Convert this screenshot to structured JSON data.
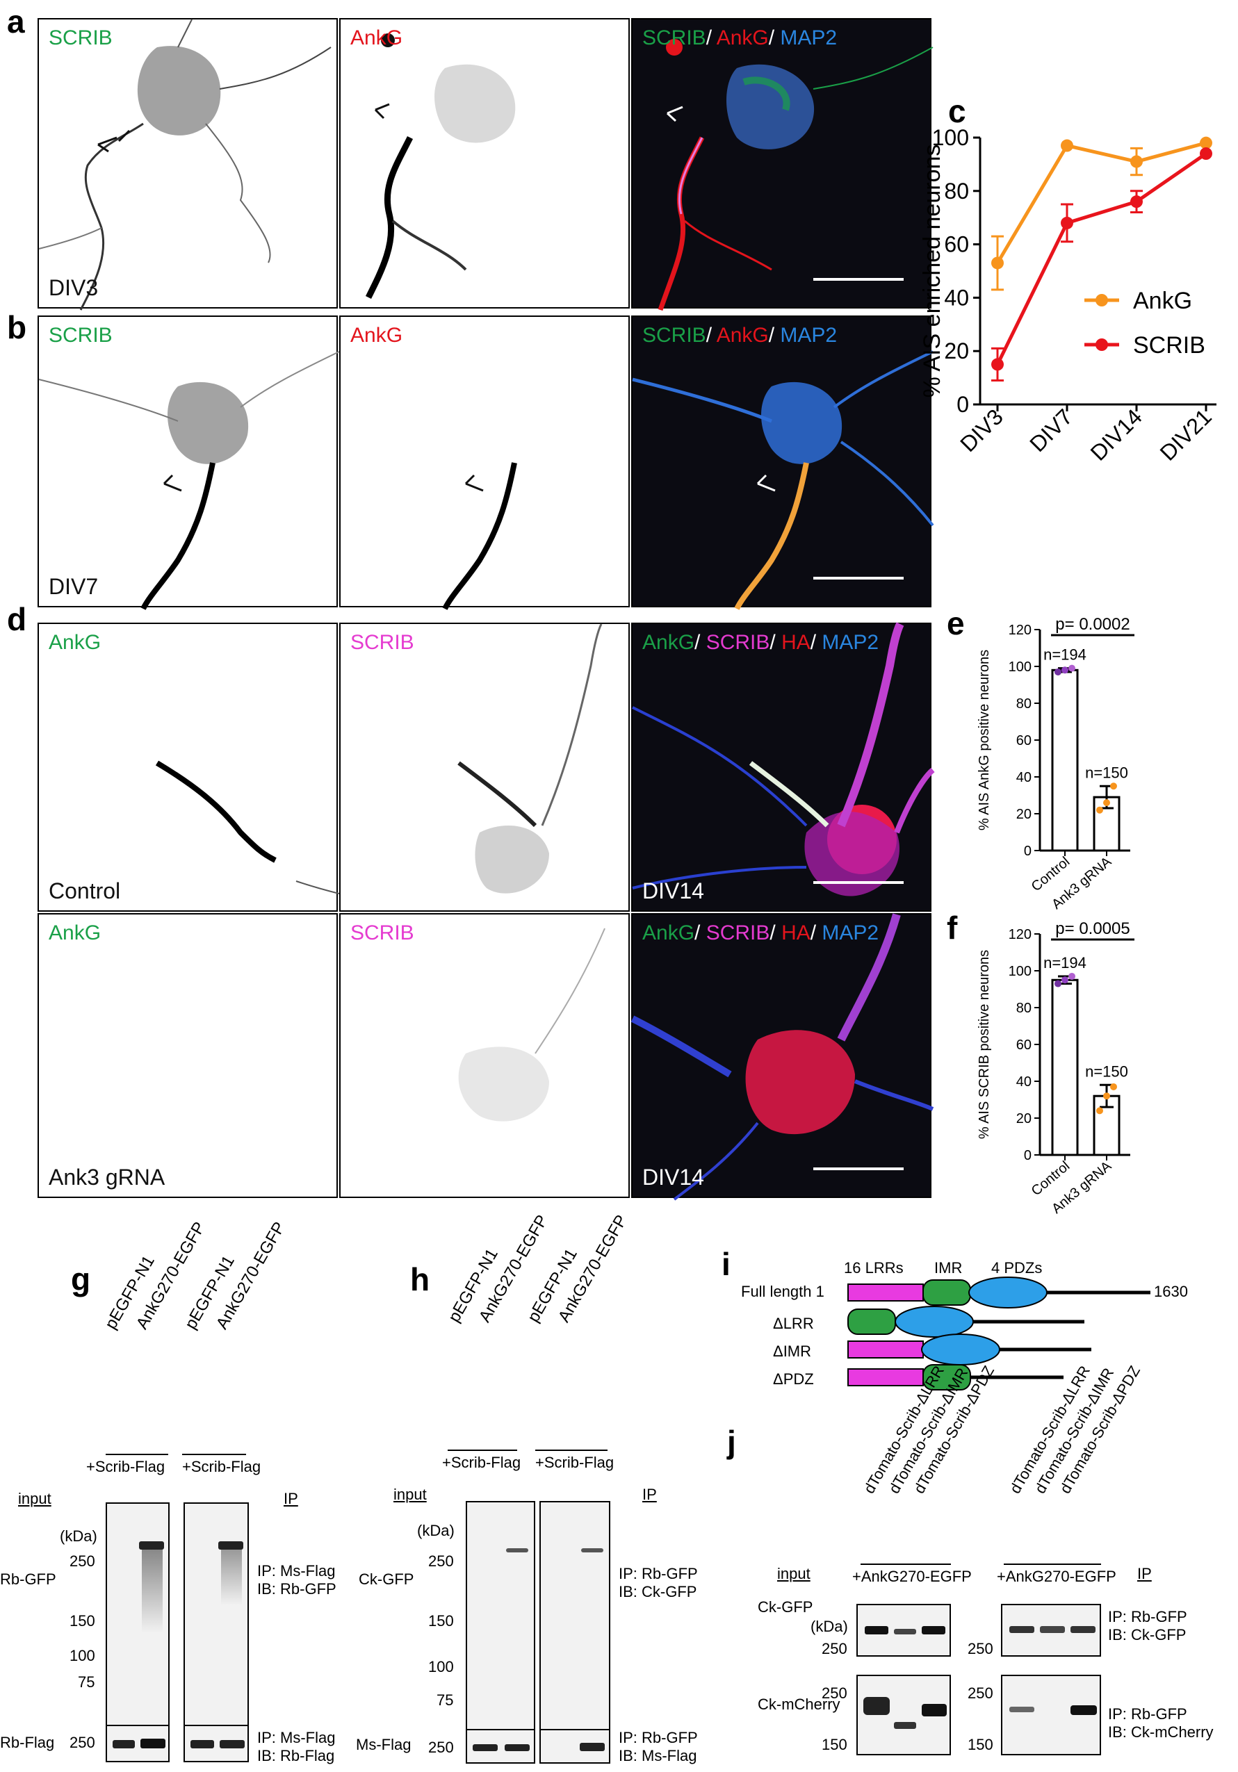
{
  "panels": {
    "a": {
      "label": "a",
      "ch1": "SCRIB",
      "ch2": "AnkG",
      "merge": [
        "SCRIB",
        "/ ",
        "AnkG",
        "/ ",
        "MAP2"
      ],
      "condition": "DIV3"
    },
    "b": {
      "label": "b",
      "ch1": "SCRIB",
      "ch2": "AnkG",
      "merge": [
        "SCRIB",
        "/ ",
        "AnkG",
        "/ ",
        "MAP2"
      ],
      "condition": "DIV7"
    },
    "d": {
      "label": "d",
      "ch1": "AnkG",
      "ch2": "SCRIB",
      "merge": [
        "AnkG",
        "/ ",
        "SCRIB",
        "/ ",
        "HA",
        "/ ",
        "MAP2"
      ],
      "control": "Control",
      "knock": "Ank3 gRNA",
      "div": "DIV14"
    },
    "g": {
      "label": "g",
      "lanes": [
        "pEGFP-N1",
        "AnkG270-EGFP",
        "pEGFP-N1",
        "AnkG270-EGFP"
      ],
      "bracket": "+Scrib-Flag",
      "input": "input",
      "ip": "IP",
      "kda": "(kDa)",
      "markers": [
        "250",
        "150",
        "100",
        "75"
      ],
      "row1": "Rb-GFP",
      "row2": "Rb-Flag",
      "row2_marker": "250",
      "ip1a": "IP: Ms-Flag",
      "ip1b": "IB: Rb-GFP",
      "ip2a": "IP: Ms-Flag",
      "ip2b": "IB: Rb-Flag"
    },
    "h": {
      "label": "h",
      "lanes": [
        "pEGFP-N1",
        "AnkG270-EGFP",
        "pEGFP-N1",
        "AnkG270-EGFP"
      ],
      "bracket": "+Scrib-Flag",
      "input": "input",
      "ip": "IP",
      "kda": "(kDa)",
      "markers": [
        "250",
        "150",
        "100",
        "75"
      ],
      "row1": "Ck-GFP",
      "row2": "Ms-Flag",
      "row2_marker": "250",
      "ip1a": "IP: Rb-GFP",
      "ip1b": "IB: Ck-GFP",
      "ip2a": "IP: Rb-GFP",
      "ip2b": "IB: Ms-Flag"
    },
    "i": {
      "label": "i",
      "lrr": "16 LRRs",
      "imr": "IMR",
      "pdz": "4 PDZs",
      "full": "Full length",
      "start": "1",
      "end": "1630",
      "d1": "ΔLRR",
      "d2": "ΔIMR",
      "d3": "ΔPDZ"
    },
    "j": {
      "label": "j",
      "lanes": [
        "dTomato-Scrib-ΔLRR",
        "dTomato-Scrib-ΔIMR",
        "dTomato-Scrib-ΔPDZ"
      ],
      "bracket": "+AnkG270-EGFP",
      "input": "input",
      "ip": "IP",
      "kda": "(kDa)",
      "row1": "Ck-GFP",
      "row2": "Ck-mCherry",
      "m250": "250",
      "m150": "150",
      "ip1a": "IP: Rb-GFP",
      "ip1b": "IB: Ck-GFP",
      "ip2a": "IP: Rb-GFP",
      "ip2b": "IB: Ck-mCherry"
    }
  },
  "chart_data": [
    {
      "type": "line",
      "label": "c",
      "categories": [
        "DIV3",
        "DIV7",
        "DIV14",
        "DIV21"
      ],
      "ylabel": "% AIS enriched neurons",
      "ylim": [
        0,
        100
      ],
      "yticks": [
        "0",
        "20",
        "40",
        "60",
        "80",
        "100"
      ],
      "series": [
        {
          "name": "AnkG",
          "color": "#f7941d",
          "values": [
            53,
            97,
            91,
            98
          ],
          "err": [
            10,
            0,
            5,
            0
          ]
        },
        {
          "name": "SCRIB",
          "color": "#e8141c",
          "values": [
            15,
            68,
            76,
            94
          ],
          "err": [
            6,
            7,
            4,
            0
          ]
        }
      ],
      "legend": "inside-lower-right"
    },
    {
      "type": "bar",
      "label": "e",
      "categories": [
        "Control",
        "Ank3 gRNA"
      ],
      "values": [
        98,
        29
      ],
      "err": [
        1,
        6
      ],
      "n": [
        "n=194",
        "n=150"
      ],
      "pvalue": "p= 0.0002",
      "ylabel": "% AIS AnkG positive neurons",
      "ylim": [
        0,
        120
      ],
      "yticks": [
        "0",
        "20",
        "40",
        "60",
        "80",
        "100",
        "120"
      ],
      "points": [
        [
          97,
          98,
          99
        ],
        [
          22,
          26,
          35
        ]
      ]
    },
    {
      "type": "bar",
      "label": "f",
      "categories": [
        "Control",
        "Ank3 gRNA"
      ],
      "values": [
        95,
        32
      ],
      "err": [
        2,
        6
      ],
      "n": [
        "n=194",
        "n=150"
      ],
      "pvalue": "p= 0.0005",
      "ylabel": "% AIS SCRIB positive neurons",
      "ylim": [
        0,
        120
      ],
      "yticks": [
        "0",
        "20",
        "40",
        "60",
        "80",
        "100",
        "120"
      ],
      "points": [
        [
          93,
          95,
          97
        ],
        [
          24,
          32,
          37
        ]
      ]
    }
  ]
}
